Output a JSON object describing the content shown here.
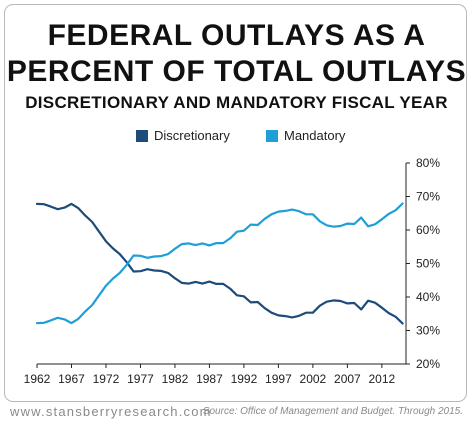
{
  "header": {
    "title_line1": "FEDERAL OUTLAYS AS A",
    "title_line2": "PERCENT OF TOTAL OUTLAYS",
    "subtitle": "DISCRETIONARY AND MANDATORY FISCAL YEAR"
  },
  "footer": {
    "website": "www.stansberryresearch.com",
    "source": "Source: Office of Management and Budget. Through 2015."
  },
  "colors": {
    "discretionary": "#1d4b7a",
    "mandatory": "#1ea0d6"
  },
  "chart_data": {
    "type": "line",
    "title": "FEDERAL OUTLAYS AS A PERCENT OF TOTAL OUTLAYS",
    "subtitle": "DISCRETIONARY AND MANDATORY FISCAL YEAR",
    "xlabel": "",
    "ylabel": "",
    "x_ticks": [
      "1962",
      "1967",
      "1972",
      "1977",
      "1982",
      "1987",
      "1992",
      "1997",
      "2002",
      "2007",
      "2012"
    ],
    "y_ticks": [
      "20%",
      "30%",
      "40%",
      "50%",
      "60%",
      "70%",
      "80%"
    ],
    "xlim": [
      1962,
      2015.5
    ],
    "ylim": [
      20,
      80
    ],
    "grid": false,
    "legend_position": "top",
    "x": [
      1962,
      1963,
      1964,
      1965,
      1966,
      1967,
      1968,
      1969,
      1970,
      1971,
      1972,
      1973,
      1974,
      1975,
      1976,
      1977,
      1978,
      1979,
      1980,
      1981,
      1982,
      1983,
      1984,
      1985,
      1986,
      1987,
      1988,
      1989,
      1990,
      1991,
      1992,
      1993,
      1994,
      1995,
      1996,
      1997,
      1998,
      1999,
      2000,
      2001,
      2002,
      2003,
      2004,
      2005,
      2006,
      2007,
      2008,
      2009,
      2010,
      2011,
      2012,
      2013,
      2014,
      2015
    ],
    "series": [
      {
        "name": "Discretionary",
        "values": [
          67.8,
          67.7,
          67.0,
          66.2,
          66.7,
          67.8,
          66.5,
          64.3,
          62.4,
          59.5,
          56.6,
          54.5,
          52.8,
          50.4,
          47.6,
          47.7,
          48.3,
          47.9,
          47.8,
          47.2,
          45.6,
          44.2,
          44.0,
          44.5,
          44.0,
          44.6,
          43.9,
          43.9,
          42.5,
          40.5,
          40.2,
          38.4,
          38.5,
          36.7,
          35.3,
          34.5,
          34.3,
          33.9,
          34.4,
          35.3,
          35.3,
          37.4,
          38.6,
          39.0,
          38.8,
          38.1,
          38.2,
          36.3,
          38.9,
          38.3,
          36.8,
          35.2,
          34.1,
          32.1
        ]
      },
      {
        "name": "Mandatory",
        "values": [
          32.2,
          32.3,
          33.0,
          33.8,
          33.3,
          32.2,
          33.5,
          35.7,
          37.6,
          40.5,
          43.4,
          45.5,
          47.2,
          49.6,
          52.4,
          52.3,
          51.7,
          52.1,
          52.2,
          52.8,
          54.4,
          55.8,
          56.0,
          55.5,
          56.0,
          55.4,
          56.1,
          56.1,
          57.5,
          59.5,
          59.8,
          61.6,
          61.5,
          63.3,
          64.7,
          65.5,
          65.7,
          66.1,
          65.6,
          64.7,
          64.7,
          62.6,
          61.4,
          61.0,
          61.2,
          61.9,
          61.8,
          63.7,
          61.1,
          61.7,
          63.2,
          64.8,
          65.9,
          67.9
        ]
      }
    ]
  }
}
